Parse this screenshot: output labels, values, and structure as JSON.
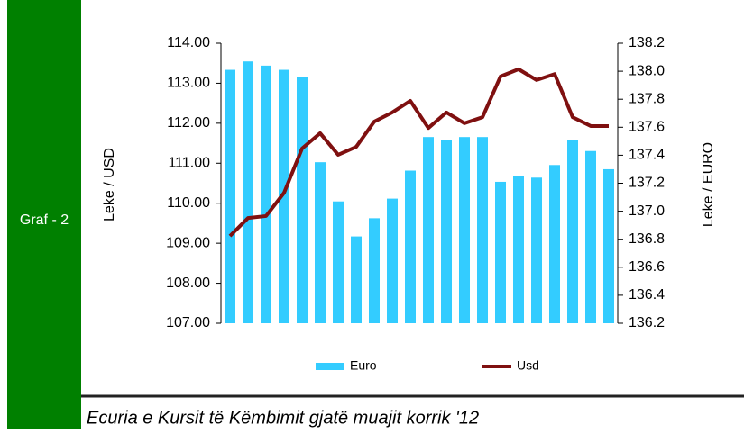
{
  "side_label": "Graf - 2",
  "caption": "Ecuria e Kursit të Këmbimit gjatë muajit korrik '12",
  "chart_data": {
    "type": "bar-line",
    "ylabel": "Leke / USD",
    "y2label": "Leke / EURO",
    "ylim": [
      107,
      114
    ],
    "yticks": [
      {
        "value": 107,
        "label": "107.00"
      },
      {
        "value": 108,
        "label": "108.00"
      },
      {
        "value": 109,
        "label": "109.00"
      },
      {
        "value": 110,
        "label": "110.00"
      },
      {
        "value": 111,
        "label": "111.00"
      },
      {
        "value": 112,
        "label": "112.00"
      },
      {
        "value": 113,
        "label": "113.00"
      },
      {
        "value": 114,
        "label": "114.00"
      }
    ],
    "y2lim": [
      136.2,
      138.2
    ],
    "y2ticks": [
      136.2,
      136.4,
      136.6,
      136.8,
      {
        "value": 137,
        "label": "137.0"
      },
      137.2,
      137.4,
      137.6,
      137.8,
      {
        "value": 138,
        "label": "138.0"
      },
      138.2
    ],
    "legend": "bottom",
    "series": [
      {
        "name": "Euro",
        "type": "bar",
        "axis": "y2",
        "color": "#33ccff",
        "values": [
          138.01,
          138.07,
          138.04,
          138.01,
          137.96,
          137.35,
          137.07,
          136.82,
          136.95,
          137.09,
          137.29,
          137.53,
          137.51,
          137.53,
          137.53,
          137.21,
          137.25,
          137.24,
          137.33,
          137.51,
          137.43,
          137.3
        ]
      },
      {
        "name": "Usd",
        "type": "line",
        "axis": "y",
        "color": "#7f1010",
        "values": [
          109.18,
          109.63,
          109.68,
          110.26,
          111.37,
          111.75,
          111.21,
          111.41,
          112.04,
          112.27,
          112.56,
          111.88,
          112.27,
          112.0,
          112.15,
          113.17,
          113.35,
          113.08,
          113.23,
          112.15,
          111.93,
          111.93
        ]
      }
    ]
  }
}
